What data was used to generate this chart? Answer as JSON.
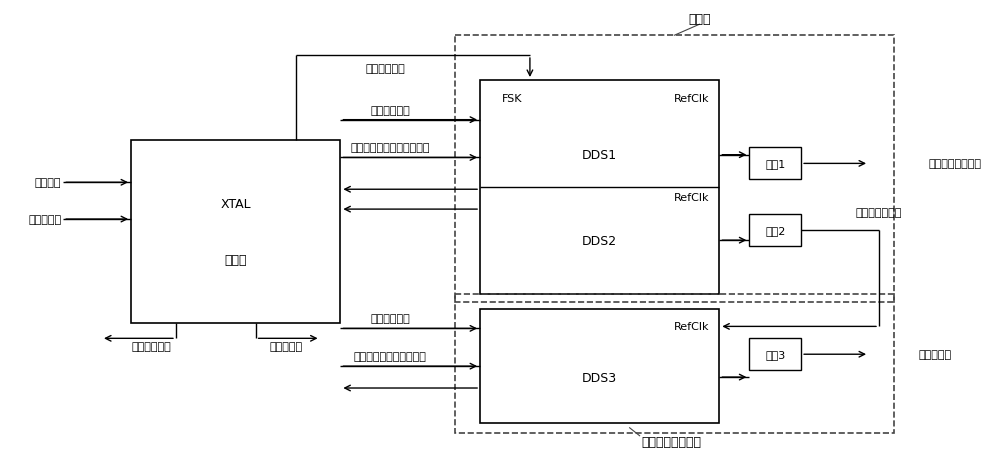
{
  "bg_color": "#ffffff",
  "line_color": "#000000",
  "processor_label1": "XTAL",
  "processor_label2": "处理器",
  "dds1_label": "DDS1",
  "dds2_label": "DDS2",
  "fsk_label": "FSK",
  "refclk1_label": "RefClk",
  "refclk2_label": "RefClk",
  "dds3_label": "DDS3",
  "refclk3_label": "RefClk",
  "filter1_label": "滤波1",
  "filter2_label": "滤波2",
  "filter3_label": "滤波3",
  "label_beipin_qi": "倍频器",
  "label_fangzhen": "仿真激励源发生器",
  "label_jiankong": "鉴频信号",
  "label_yonghu": "用户端输入",
  "label_tongbu": "同步参考信号",
  "label_panduan": "判断用信号",
  "label_keying": "键控调频信号",
  "label_serial1": "串行通讯时序",
  "label_init1": "倍频、调制数值初始化设置",
  "label_serial2": "串行通讯时序",
  "label_init2": "输出频率数值初始化设置",
  "label_out1": "带调制的倍频信号",
  "label_out2": "非调制倍频信号",
  "label_out3": "频稳测试仪"
}
